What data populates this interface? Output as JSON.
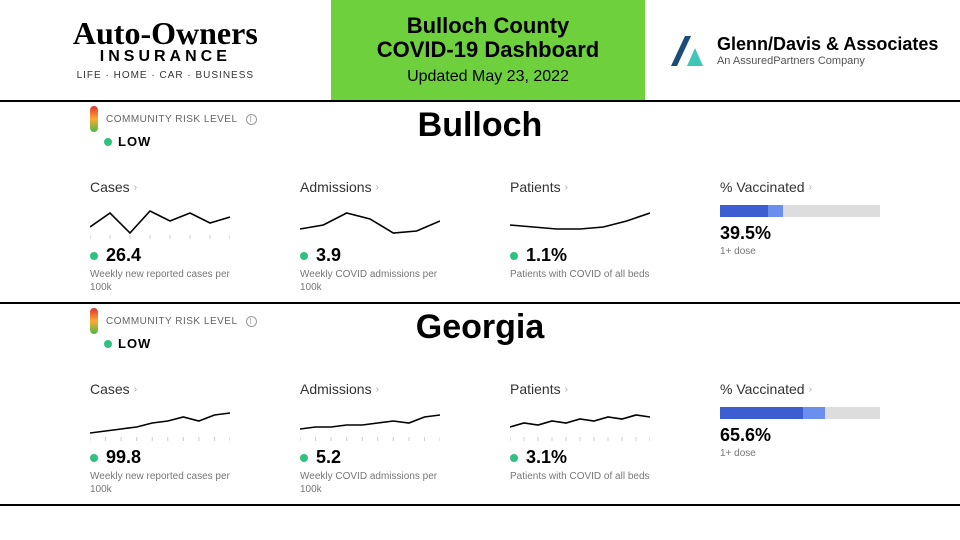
{
  "header": {
    "sponsor_left": {
      "name": "Auto-Owners",
      "sub": "INSURANCE",
      "tagline": "LIFE · HOME · CAR · BUSINESS"
    },
    "title_line1": "Bulloch County",
    "title_line2": "COVID-19 Dashboard",
    "updated": "Updated May 23, 2022",
    "sponsor_right": {
      "name": "Glenn/Davis & Associates",
      "sub": "An AssuredPartners Company"
    },
    "title_bg": "#6fd03e"
  },
  "risk_label": "COMMUNITY RISK LEVEL",
  "regions": [
    {
      "name": "Bulloch",
      "risk": "LOW",
      "metrics": [
        {
          "title": "Cases",
          "value": "26.4",
          "desc": "Weekly new reported cases per 100k",
          "spark": {
            "points": [
              28,
              14,
              34,
              12,
              22,
              14,
              24,
              18
            ],
            "ticks": true
          }
        },
        {
          "title": "Admissions",
          "value": "3.9",
          "desc": "Weekly COVID admissions per 100k",
          "spark": {
            "points": [
              30,
              26,
              14,
              20,
              34,
              32,
              22
            ]
          }
        },
        {
          "title": "Patients",
          "value": "1.1%",
          "desc": "Patients with COVID of all beds",
          "spark": {
            "points": [
              26,
              28,
              30,
              30,
              28,
              22,
              14
            ]
          }
        }
      ],
      "vaccinated": {
        "title": "% Vaccinated",
        "value": "39.5%",
        "desc": "1+ dose",
        "pct": 39.5,
        "dark_pct": 30
      }
    },
    {
      "name": "Georgia",
      "risk": "LOW",
      "metrics": [
        {
          "title": "Cases",
          "value": "99.8",
          "desc": "Weekly new reported cases per 100k",
          "spark": {
            "points": [
              32,
              30,
              28,
              26,
              22,
              20,
              16,
              20,
              14,
              12
            ],
            "ticks": true
          }
        },
        {
          "title": "Admissions",
          "value": "5.2",
          "desc": "Weekly COVID admissions per 100k",
          "spark": {
            "points": [
              28,
              26,
              26,
              24,
              24,
              22,
              20,
              22,
              16,
              14
            ],
            "ticks": true
          }
        },
        {
          "title": "Patients",
          "value": "3.1%",
          "desc": "Patients with COVID of all beds",
          "spark": {
            "points": [
              26,
              22,
              24,
              20,
              22,
              18,
              20,
              16,
              18,
              14,
              16
            ],
            "ticks": true
          }
        }
      ],
      "vaccinated": {
        "title": "% Vaccinated",
        "value": "65.6%",
        "desc": "1+ dose",
        "pct": 65.6,
        "dark_pct": 52
      }
    }
  ],
  "colors": {
    "green_dot": "#2ec27e",
    "bar_light": "#6b8eef",
    "bar_dark": "#3c5ed0"
  }
}
